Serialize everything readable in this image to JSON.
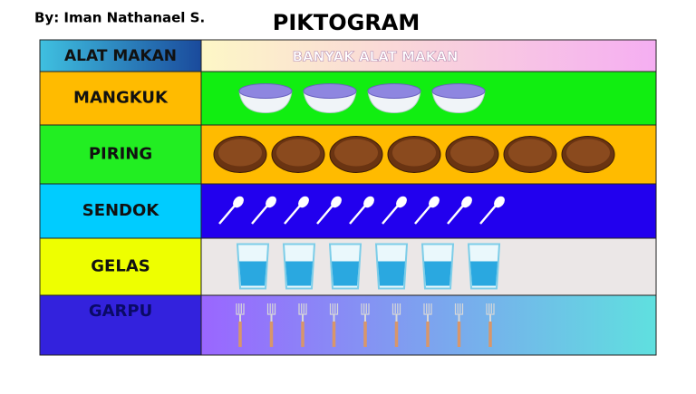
{
  "chart_data": {
    "type": "pictogram",
    "title": "PIKTOGRAM",
    "author": "By: Iman Nathanael S.",
    "category_header": "ALAT MAKAN",
    "value_header": "BANYAK ALAT MAKAN",
    "categories": [
      "MANGKUK",
      "PIRING",
      "SENDOK",
      "GELAS",
      "GARPU"
    ],
    "values": [
      4,
      7,
      9,
      6,
      9
    ]
  }
}
